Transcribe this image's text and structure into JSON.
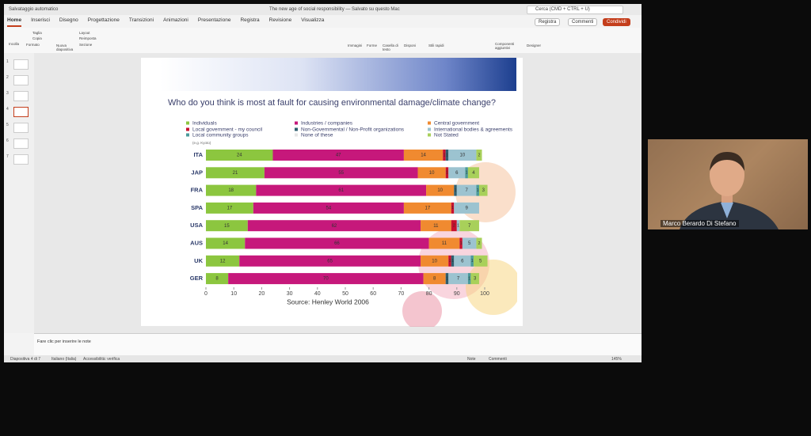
{
  "app": {
    "autosave": "Salvataggio automatico",
    "doc_title": "The new age of social responsibility — Salvato su questo Mac",
    "search": "Cerca (CMD + CTRL + U)"
  },
  "tabs": [
    "Home",
    "Inserisci",
    "Disegno",
    "Progettazione",
    "Transizioni",
    "Animazioni",
    "Presentazione",
    "Registra",
    "Revisione",
    "Visualizza"
  ],
  "ribbon_buttons": [
    "Registra",
    "Commenti",
    "Condividi"
  ],
  "tools": [
    "Incolla",
    "Taglia",
    "Copia",
    "Formato",
    "Nuova diapositiva",
    "Layout",
    "Reimposta",
    "Sezione",
    "Immagini",
    "Forme",
    "Casella di testo",
    "Disponi",
    "Stili rapidi",
    "Componenti aggiuntivi",
    "Designer"
  ],
  "slide_numbers": [
    "1",
    "2",
    "3",
    "4",
    "5",
    "6",
    "7"
  ],
  "notes": "Fare clic per inserire le note",
  "status": {
    "slide": "Diapositiva 4 di 7",
    "language": "Italiano (Italia)",
    "accessibility": "Accessibilità: verifica",
    "notes": "Note",
    "comments": "Commenti",
    "zoom": "145%"
  },
  "participant": "Marco Berardo Di Stefano",
  "chart_data": {
    "type": "stacked-bar-horizontal",
    "title": "Who do you think is most at fault for causing environmental damage/climate change?",
    "source": "Source: Henley World 2006",
    "legend_note": "(e.g. Kyoto)",
    "categories": [
      "ITA",
      "JAP",
      "FRA",
      "SPA",
      "USA",
      "AUS",
      "UK",
      "GER"
    ],
    "xlim": [
      0,
      100
    ],
    "xticks": [
      0,
      10,
      20,
      30,
      40,
      50,
      60,
      70,
      80,
      90,
      100
    ],
    "series": [
      {
        "name": "Individuals",
        "color": "#8cc63f",
        "values": [
          24,
          21,
          18,
          17,
          15,
          14,
          12,
          8
        ]
      },
      {
        "name": "Industries / companies",
        "color": "#c6187b",
        "values": [
          47,
          55,
          61,
          54,
          62,
          66,
          65,
          70
        ]
      },
      {
        "name": "Central government",
        "color": "#f08a30",
        "values": [
          14,
          10,
          10,
          17,
          11,
          11,
          10,
          8
        ]
      },
      {
        "name": "Local government - my council",
        "color": "#c8102e",
        "values": [
          1,
          1,
          0,
          1,
          2,
          1,
          1,
          0
        ]
      },
      {
        "name": "Non-Governmental / Non-Profit  organizations",
        "color": "#2f5f6f",
        "values": [
          1,
          0,
          1,
          0,
          0,
          0,
          1,
          1
        ]
      },
      {
        "name": "International bodies & agreements",
        "color": "#9cc3d0",
        "values": [
          10,
          6,
          7,
          9,
          1,
          5,
          6,
          7
        ]
      },
      {
        "name": "Local community groups",
        "color": "#4a9a9a",
        "values": [
          0,
          1,
          1,
          0,
          0,
          0,
          1,
          1
        ]
      },
      {
        "name": "None of these",
        "color": "#e6e6e6",
        "values": [
          0,
          0,
          0,
          0,
          0,
          0,
          0,
          0
        ]
      },
      {
        "name": "Not Stated",
        "color": "#a8d05a",
        "values": [
          2,
          4,
          3,
          0,
          7,
          2,
          5,
          3
        ]
      }
    ]
  }
}
